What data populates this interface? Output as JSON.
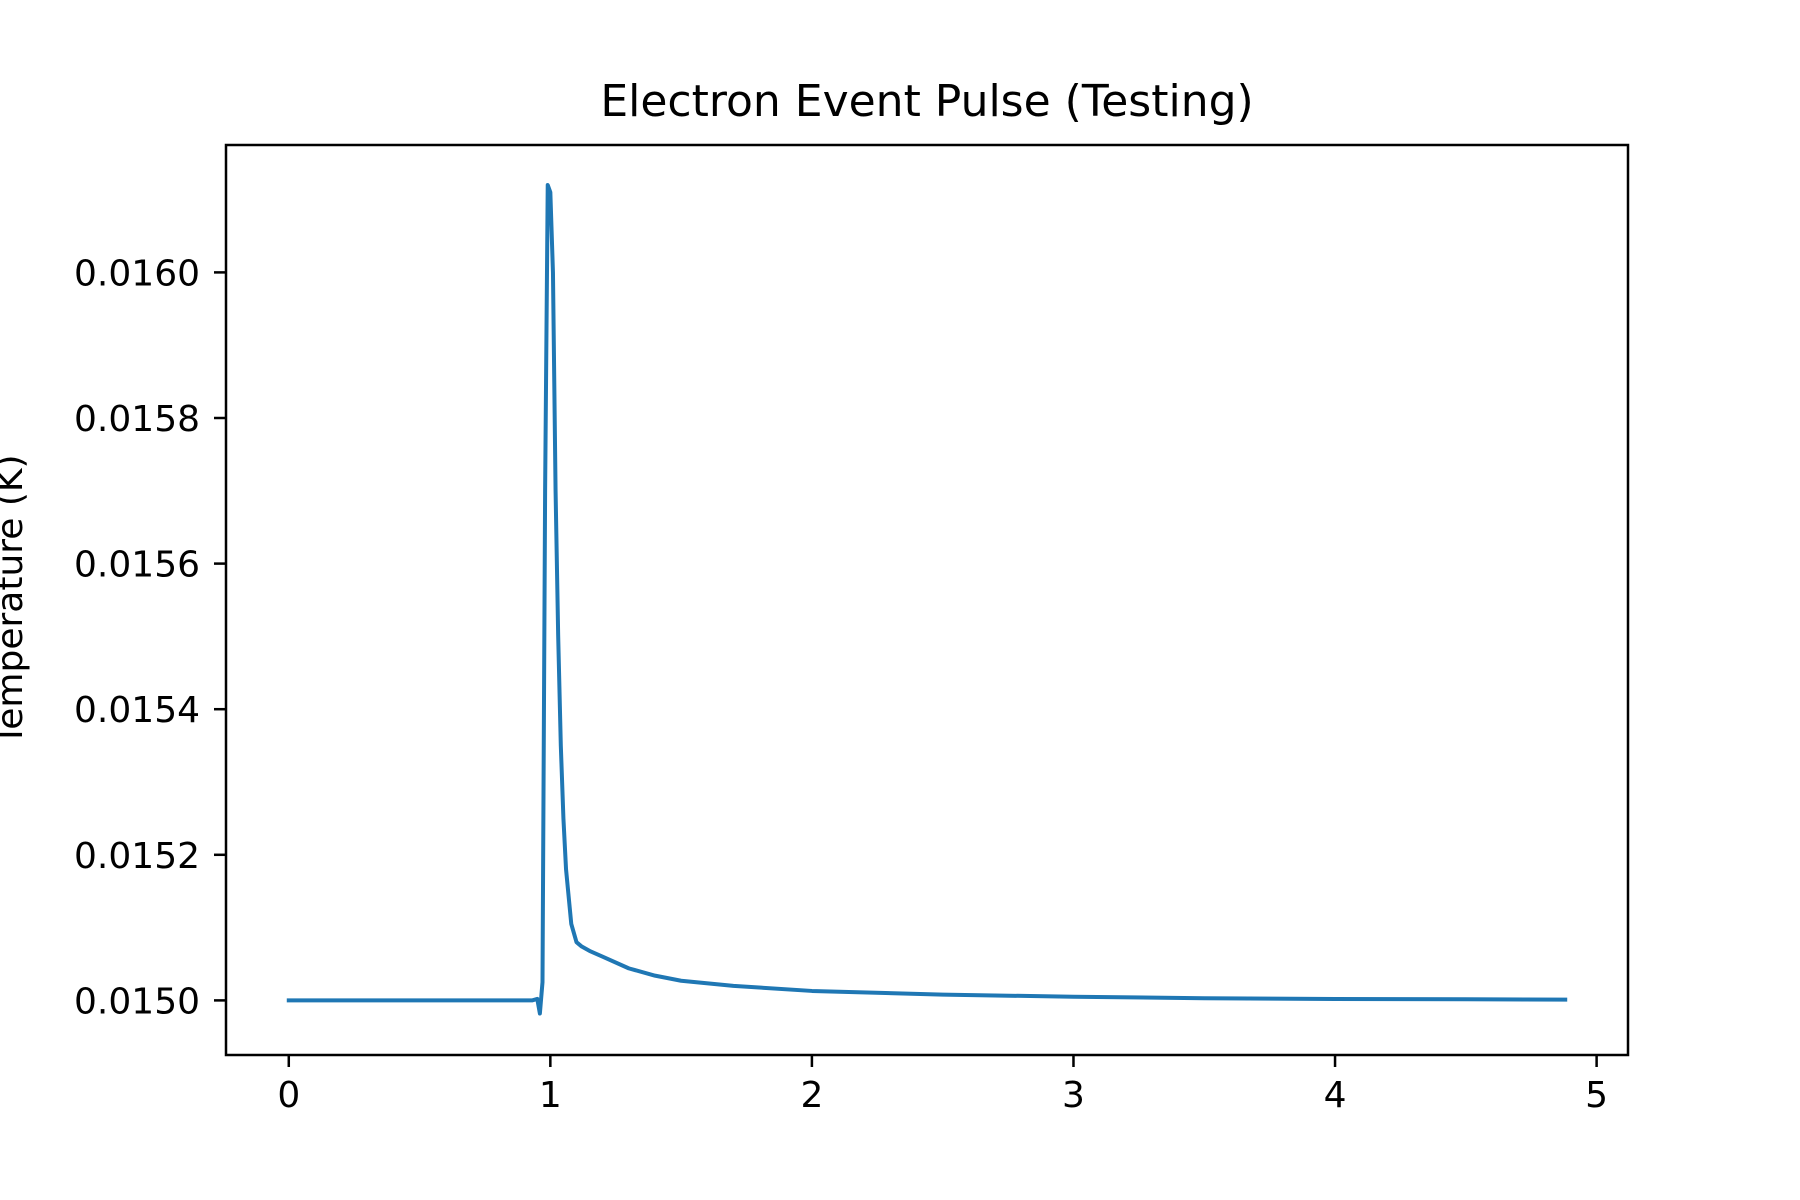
{
  "chart_data": {
    "type": "line",
    "title": "Electron Event Pulse (Testing)",
    "xlabel": "",
    "ylabel": "Temperature (K)",
    "xlim": [
      -0.24,
      5.12
    ],
    "ylim": [
      0.014925,
      0.016175
    ],
    "xticks": [
      0,
      1,
      2,
      3,
      4,
      5
    ],
    "xtick_labels": [
      "0",
      "1",
      "2",
      "3",
      "4",
      "5"
    ],
    "yticks": [
      0.015,
      0.0152,
      0.0154,
      0.0156,
      0.0158,
      0.016
    ],
    "ytick_labels": [
      "0.0150",
      "0.0152",
      "0.0154",
      "0.0156",
      "0.0158",
      "0.0160"
    ],
    "grid": false,
    "legend": "none",
    "series": [
      {
        "color": "#1f77b4",
        "x": [
          0,
          0.5,
          0.9,
          0.93,
          0.95,
          0.96,
          0.97,
          0.98,
          0.99,
          1.0,
          1.01,
          1.02,
          1.03,
          1.04,
          1.05,
          1.06,
          1.08,
          1.1,
          1.12,
          1.15,
          1.2,
          1.3,
          1.4,
          1.5,
          1.7,
          2.0,
          2.5,
          3.0,
          3.5,
          4.0,
          4.5,
          4.88
        ],
        "y": [
          0.015,
          0.015,
          0.015,
          0.015,
          0.015002,
          0.014982,
          0.015025,
          0.0157,
          0.01612,
          0.01611,
          0.016,
          0.0157,
          0.0155,
          0.01535,
          0.01525,
          0.01518,
          0.015105,
          0.01508,
          0.015074,
          0.015068,
          0.01506,
          0.015044,
          0.015034,
          0.015027,
          0.01502,
          0.015013,
          0.015008,
          0.015005,
          0.015003,
          0.015002,
          0.0150015,
          0.015001
        ]
      }
    ]
  }
}
